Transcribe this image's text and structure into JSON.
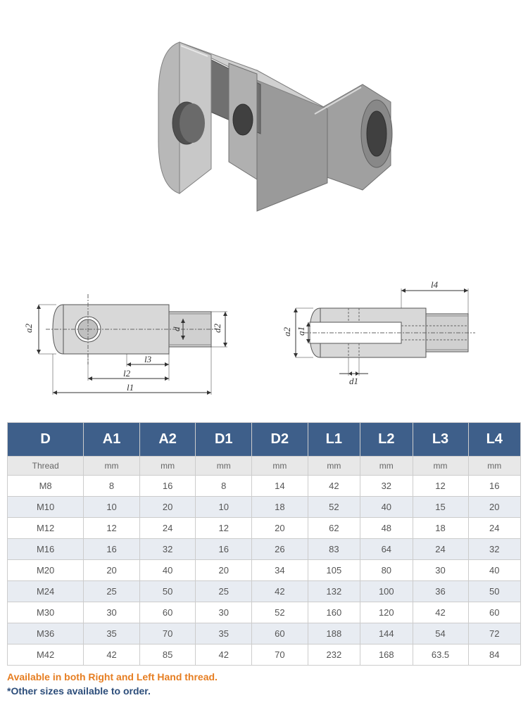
{
  "table": {
    "headers": [
      "D",
      "A1",
      "A2",
      "D1",
      "D2",
      "L1",
      "L2",
      "L3",
      "L4"
    ],
    "units": [
      "Thread",
      "mm",
      "mm",
      "mm",
      "mm",
      "mm",
      "mm",
      "mm",
      "mm"
    ],
    "rows": [
      [
        "M8",
        "8",
        "16",
        "8",
        "14",
        "42",
        "32",
        "12",
        "16"
      ],
      [
        "M10",
        "10",
        "20",
        "10",
        "18",
        "52",
        "40",
        "15",
        "20"
      ],
      [
        "M12",
        "12",
        "24",
        "12",
        "20",
        "62",
        "48",
        "18",
        "24"
      ],
      [
        "M16",
        "16",
        "32",
        "16",
        "26",
        "83",
        "64",
        "24",
        "32"
      ],
      [
        "M20",
        "20",
        "40",
        "20",
        "34",
        "105",
        "80",
        "30",
        "40"
      ],
      [
        "M24",
        "25",
        "50",
        "25",
        "42",
        "132",
        "100",
        "36",
        "50"
      ],
      [
        "M30",
        "30",
        "60",
        "30",
        "52",
        "160",
        "120",
        "42",
        "60"
      ],
      [
        "M36",
        "35",
        "70",
        "35",
        "60",
        "188",
        "144",
        "54",
        "72"
      ],
      [
        "M42",
        "42",
        "85",
        "42",
        "70",
        "232",
        "168",
        "63.5",
        "84"
      ]
    ],
    "header_bg": "#3e5f8a",
    "header_color": "#ffffff",
    "unit_bg": "#e8e8e8",
    "row_odd_bg": "#ffffff",
    "row_even_bg": "#e8ecf2",
    "border_color": "#cccccc"
  },
  "notes": {
    "note1": "Available in both Right and Left Hand thread.",
    "note2": "*Other sizes available to order.",
    "note1_color": "#e67e22",
    "note2_color": "#2c4d7a"
  },
  "diagrams": {
    "labels_left": {
      "a2": "a2",
      "d": "d",
      "d2": "d2",
      "l1": "l1",
      "l2": "l2",
      "l3": "l3"
    },
    "labels_right": {
      "a1": "a1",
      "a2": "a2",
      "d1": "d1",
      "l4": "l4"
    },
    "part_color": "#b8b8b8",
    "line_color": "#333333"
  }
}
